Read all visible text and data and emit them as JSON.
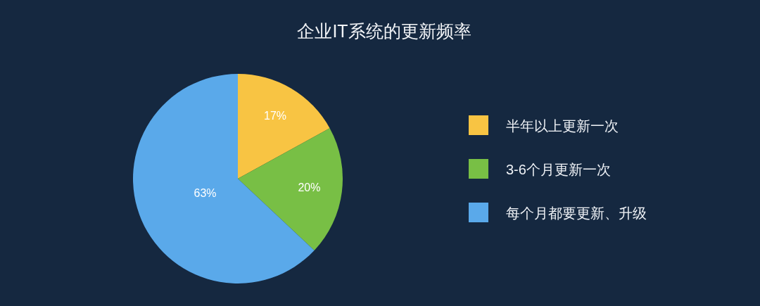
{
  "chart_data": {
    "type": "pie",
    "title": "企业IT系统的更新频率",
    "categories": [
      "半年以上更新一次",
      "3-6个月更新一次",
      "每个月都要更新、升级"
    ],
    "values": [
      17,
      20,
      63
    ],
    "colors": [
      "#f8c443",
      "#78bf45",
      "#5aa9ea"
    ],
    "value_labels": [
      "17%",
      "20%",
      "63%"
    ],
    "legend": "right"
  }
}
